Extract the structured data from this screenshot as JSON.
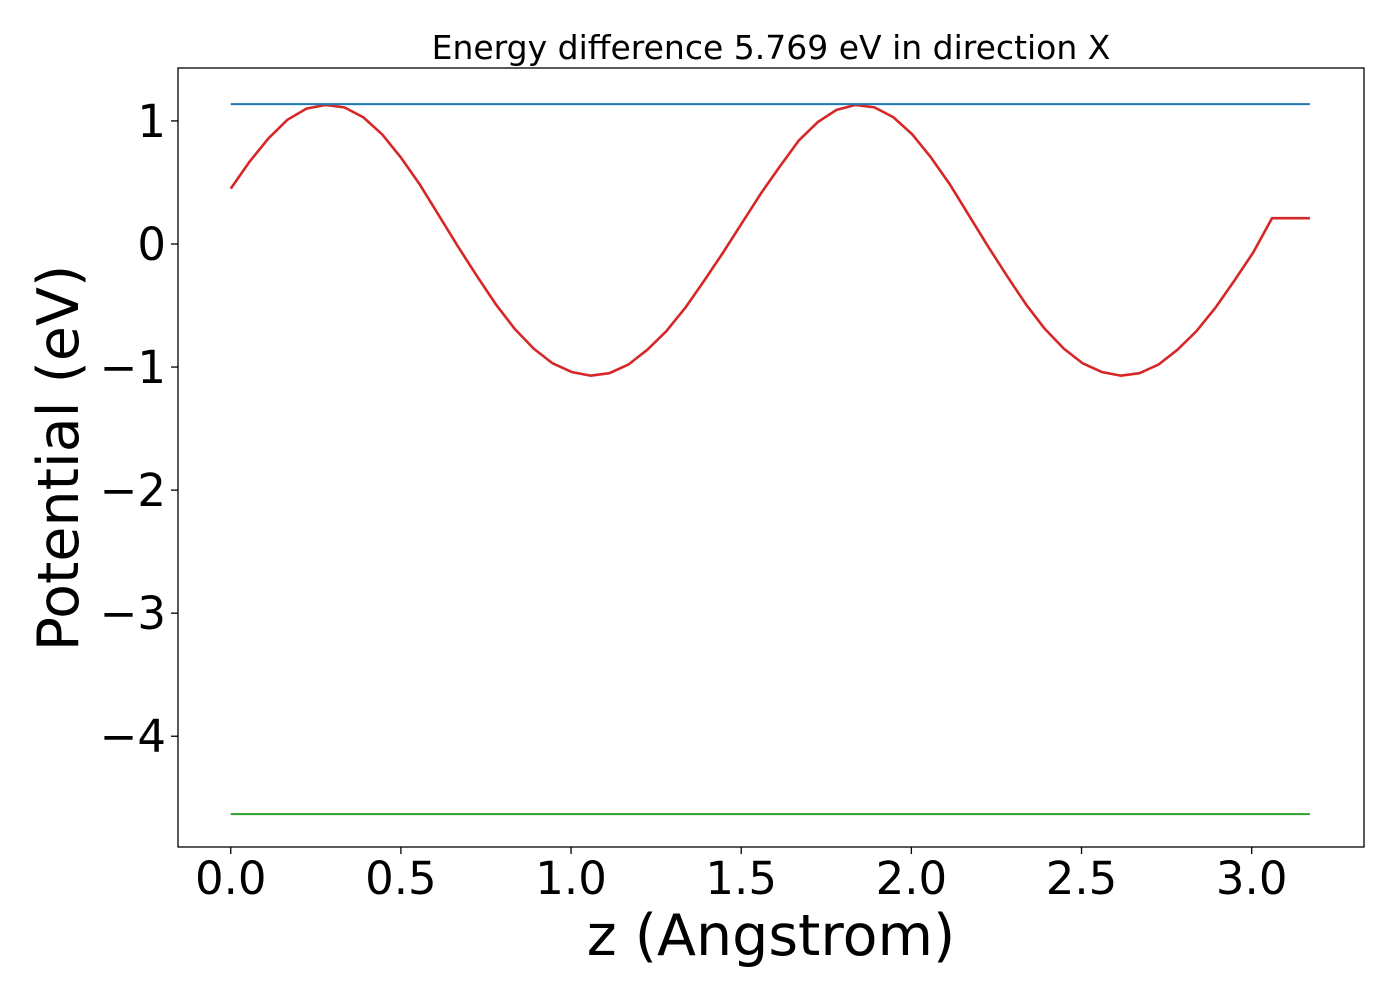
{
  "chart_data": {
    "type": "line",
    "title": "Energy difference 5.769 eV in direction X",
    "xlabel": "z (Angstrom)",
    "ylabel": "Potential (eV)",
    "xlim": [
      -0.155,
      3.33
    ],
    "ylim": [
      -4.9,
      1.43
    ],
    "xticks": [
      0.0,
      0.5,
      1.0,
      1.5,
      2.0,
      2.5,
      3.0
    ],
    "xtick_labels": [
      "0.0",
      "0.5",
      "1.0",
      "1.5",
      "2.0",
      "2.5",
      "3.0"
    ],
    "yticks": [
      1,
      0,
      -1,
      -2,
      -3,
      -4
    ],
    "ytick_labels": [
      "1",
      "0",
      "−1",
      "−2",
      "−3",
      "−4"
    ],
    "grid": false,
    "legend": "none",
    "series": [
      {
        "color": "#d62728",
        "x": [
          0.0,
          0.0556,
          0.1113,
          0.1669,
          0.2225,
          0.2782,
          0.3338,
          0.3894,
          0.4451,
          0.5007,
          0.5563,
          0.612,
          0.6676,
          0.7232,
          0.7789,
          0.8345,
          0.8901,
          0.9458,
          1.0014,
          1.057,
          1.1127,
          1.1683,
          1.2239,
          1.2796,
          1.3352,
          1.3908,
          1.4465,
          1.5021,
          1.5577,
          1.6134,
          1.669,
          1.7246,
          1.7803,
          1.8359,
          1.8915,
          1.9472,
          2.0028,
          2.0584,
          2.1141,
          2.1697,
          2.2253,
          2.281,
          2.3366,
          2.3922,
          2.4479,
          2.5035,
          2.5591,
          2.6148,
          2.6704,
          2.726,
          2.7817,
          2.8373,
          2.8929,
          2.9486,
          3.0042,
          3.0598,
          3.1155,
          3.1711
        ],
        "y": [
          0.45,
          0.67,
          0.86,
          1.01,
          1.1,
          1.13,
          1.11,
          1.03,
          0.89,
          0.7,
          0.48,
          0.23,
          -0.02,
          -0.26,
          -0.49,
          -0.69,
          -0.85,
          -0.97,
          -1.04,
          -1.07,
          -1.05,
          -0.98,
          -0.86,
          -0.71,
          -0.52,
          -0.3,
          -0.07,
          0.17,
          0.41,
          0.63,
          0.84,
          0.99,
          1.09,
          1.13,
          1.11,
          1.03,
          0.89,
          0.7,
          0.48,
          0.23,
          -0.02,
          -0.26,
          -0.49,
          -0.69,
          -0.85,
          -0.97,
          -1.04,
          -1.07,
          -1.05,
          -0.98,
          -0.86,
          -0.71,
          -0.52,
          -0.3,
          -0.07,
          0.21,
          0.21,
          0.21
        ]
      },
      {
        "color": "#1f77b4",
        "x": [
          0.0,
          3.171
        ],
        "y": [
          1.136,
          1.136
        ]
      },
      {
        "color": "#2ca02c",
        "x": [
          0.0,
          3.171
        ],
        "y": [
          -4.633,
          -4.633
        ]
      }
    ]
  }
}
